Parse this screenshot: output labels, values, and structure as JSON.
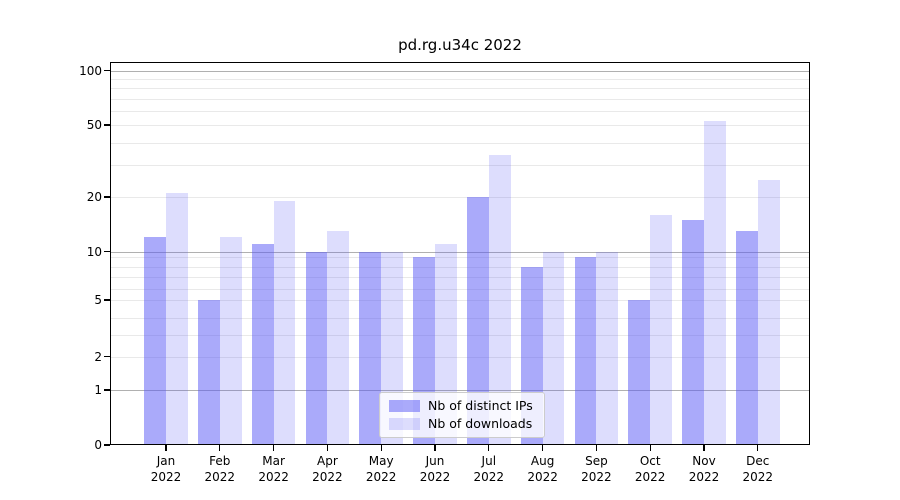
{
  "figure": {
    "title": "pd.rg.u34c 2022"
  },
  "chart_data": {
    "type": "bar",
    "title": "pd.rg.u34c 2022",
    "categories": [
      "Jan 2022",
      "Feb 2022",
      "Mar 2022",
      "Apr 2022",
      "May 2022",
      "Jun 2022",
      "Jul 2022",
      "Aug 2022",
      "Sep 2022",
      "Oct 2022",
      "Nov 2022",
      "Dec 2022"
    ],
    "series": [
      {
        "name": "Nb of distinct IPs",
        "color": "rgba(85,85,245,0.5)",
        "values": [
          12,
          5,
          11,
          10,
          10,
          9,
          20,
          8,
          9,
          5,
          15,
          13
        ]
      },
      {
        "name": "Nb of downloads",
        "color": "rgba(85,85,245,0.2)",
        "values": [
          21,
          12,
          19,
          13,
          10,
          11,
          34,
          10,
          10,
          16,
          53,
          25
        ]
      }
    ],
    "yscale": "log-like",
    "yticks": [
      0,
      1,
      2,
      5,
      10,
      20,
      50,
      100
    ],
    "minor_grid_values": [
      2,
      3,
      4,
      5,
      6,
      7,
      8,
      9,
      20,
      30,
      40,
      50,
      60,
      70,
      80,
      90
    ],
    "major_grid_values": [
      1,
      10,
      100
    ],
    "ylim": [
      0,
      112
    ],
    "grid": true,
    "legend_position": "lower center",
    "bar_base_color": "#5555f5"
  }
}
